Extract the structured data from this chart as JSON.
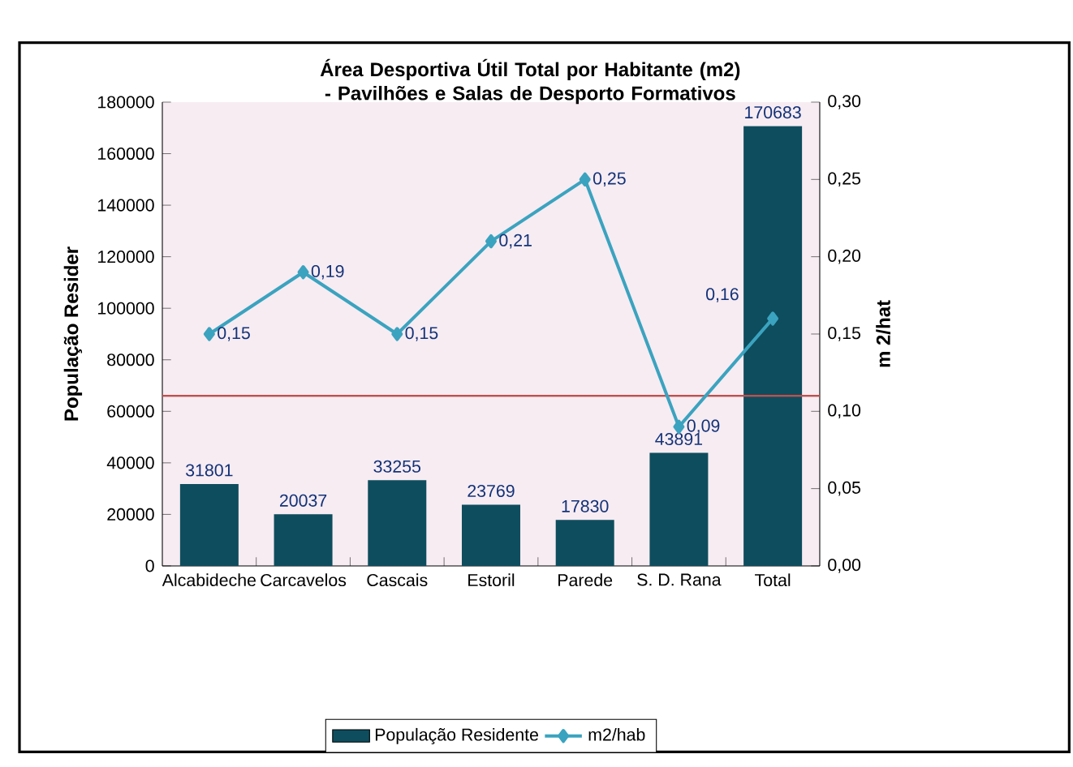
{
  "chart_data": {
    "type": "bar",
    "title": "Área Desportiva Útil Total por Habitante (m2) - Pavilhões e Salas de Desporto Formativos",
    "categories": [
      "Alcabideche",
      "Carcavelos",
      "Cascais",
      "Estoril",
      "Parede",
      "S. D. Rana",
      "Total"
    ],
    "ylabel": "População Resider",
    "y2label": "m 2/hat",
    "series": [
      {
        "name": "População Residente",
        "color": "#0e4d5e",
        "values": [
          31801,
          20037,
          33255,
          23769,
          17830,
          43891,
          170683
        ],
        "value_labels": [
          "31801",
          "20037",
          "33255",
          "23769",
          "17830",
          "43891",
          "170683"
        ]
      },
      {
        "name": "m2/hab",
        "type": "line",
        "axis": "y2",
        "color": "#3ba3bf",
        "marker": "diamond",
        "values": [
          0.15,
          0.19,
          0.15,
          0.21,
          0.25,
          0.09,
          0.16
        ],
        "value_labels": [
          "0,15",
          "0,19",
          "0,15",
          "0,21",
          "0,25",
          "0,09",
          "0,16"
        ]
      }
    ],
    "ylim": [
      0,
      180000
    ],
    "yticks": [
      0,
      20000,
      40000,
      60000,
      80000,
      100000,
      120000,
      140000,
      160000,
      180000
    ],
    "y2lim": [
      0,
      0.3
    ],
    "y2ticks": [
      {
        "value": 0,
        "label": "0,00"
      },
      {
        "value": 0.05,
        "label": "0,05"
      },
      {
        "value": 0.1,
        "label": "0,10"
      },
      {
        "value": 0.15,
        "label": "0,15"
      },
      {
        "value": 0.2,
        "label": "0,20"
      },
      {
        "value": 0.25,
        "label": "0,25"
      },
      {
        "value": 0.3,
        "label": "0,30"
      }
    ],
    "ref_lines": [
      {
        "axis": "y2",
        "value": 0.11,
        "color": "#c0504d"
      }
    ],
    "legend": "bottom",
    "grid": false
  }
}
